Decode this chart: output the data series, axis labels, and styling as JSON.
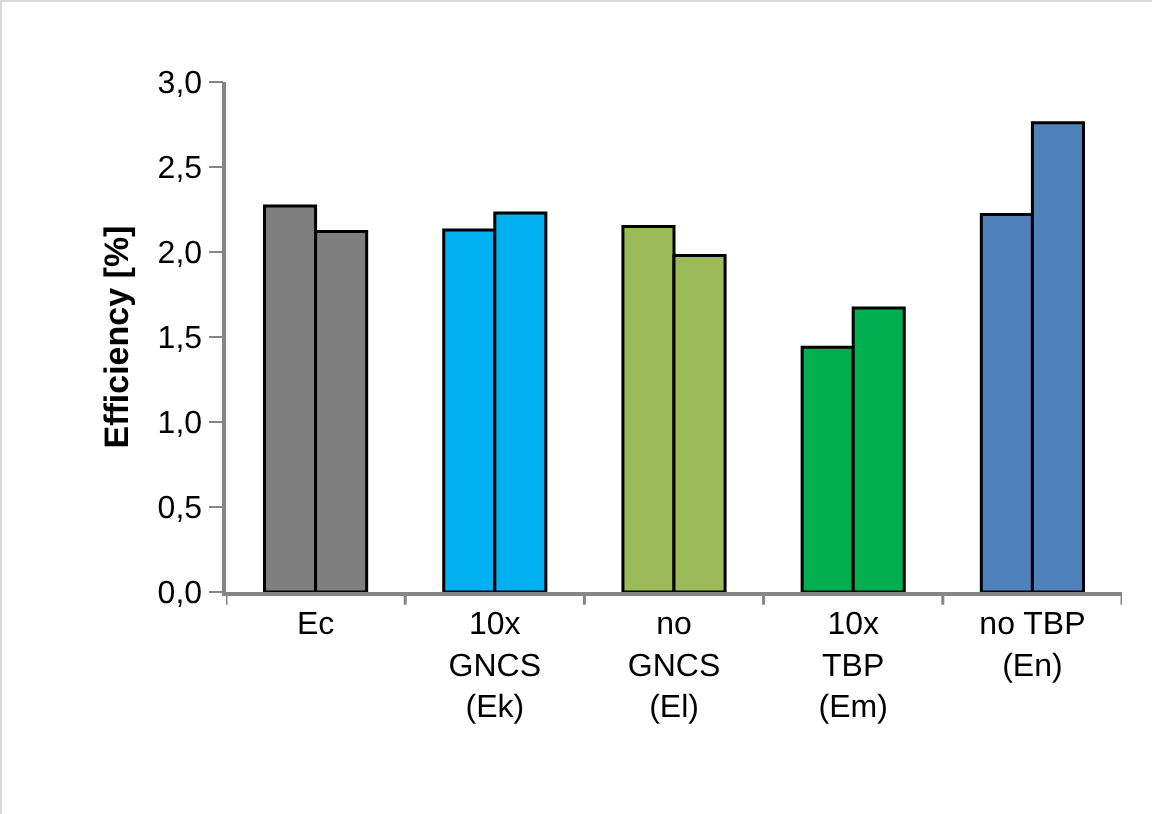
{
  "chart_data": {
    "type": "bar",
    "ylabel": "Efficiency [%]",
    "categories": [
      "Ec",
      "10x\nGNCS\n(Ek)",
      "no\nGNCS\n(El)",
      "10x\nTBP\n(Em)",
      "no TBP\n(En)"
    ],
    "series": [
      {
        "colors": [
          "#7f7f7f",
          "#00b0f0",
          "#9bbb59",
          "#00b050",
          "#4f81bd"
        ],
        "values": [
          2.27,
          2.13,
          2.15,
          1.44,
          2.22
        ]
      },
      {
        "colors": [
          "#7f7f7f",
          "#00b0f0",
          "#9bbb59",
          "#00b050",
          "#4f81bd"
        ],
        "values": [
          2.12,
          2.23,
          1.98,
          1.67,
          2.76
        ]
      }
    ],
    "ylim": [
      0,
      3
    ],
    "yticks": [
      {
        "value": 0,
        "label": "0,0"
      },
      {
        "value": 0.5,
        "label": "0,5"
      },
      {
        "value": 1,
        "label": "1,0"
      },
      {
        "value": 1.5,
        "label": "1,5"
      },
      {
        "value": 2,
        "label": "2,0"
      },
      {
        "value": 2.5,
        "label": "2,5"
      },
      {
        "value": 3,
        "label": "3,0"
      }
    ],
    "grid": false
  }
}
